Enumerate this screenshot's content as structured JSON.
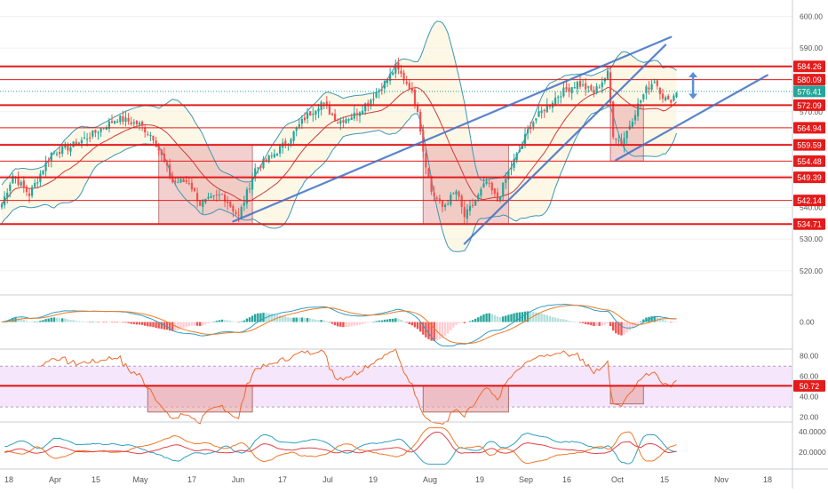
{
  "chart_data": [
    {
      "type": "candlestick",
      "panel": "price",
      "y_ticks": [
        "600.00",
        "590.00",
        "580.00",
        "570.00",
        "560.00",
        "550.00",
        "540.00",
        "530.00",
        "520.00"
      ],
      "ylim": [
        513,
        604
      ],
      "x_tick_labels": [
        "18",
        "Apr",
        "15",
        "May",
        "17",
        "Jun",
        "17",
        "Jul",
        "19",
        "Aug",
        "19",
        "Sep",
        "16",
        "Oct",
        "15",
        "Nov",
        "18"
      ],
      "horizontal_levels": [
        {
          "value": 584.26,
          "label": "584.26"
        },
        {
          "value": 580.09,
          "label": "580.09"
        },
        {
          "value": 572.09,
          "label": "572.09"
        },
        {
          "value": 564.94,
          "label": "564.94"
        },
        {
          "value": 559.59,
          "label": "559.59"
        },
        {
          "value": 554.48,
          "label": "554.48"
        },
        {
          "value": 549.39,
          "label": "549.39"
        },
        {
          "value": 542.14,
          "label": "542.14"
        },
        {
          "value": 534.71,
          "label": "534.71"
        }
      ],
      "last_price": {
        "value": 576.41,
        "label": "576.41"
      },
      "highlight_zones": [
        {
          "start_index": 57,
          "end_index": 91,
          "low": 534.7,
          "high": 559.6
        },
        {
          "start_index": 153,
          "end_index": 184,
          "low": 534.7,
          "high": 559.6
        },
        {
          "start_index": 221,
          "end_index": 233,
          "low": 554.5,
          "high": 572.1
        }
      ],
      "trendlines": [
        {
          "from": {
            "index": 84,
            "value": 535.5
          },
          "to": {
            "index": 243,
            "value": 593.5
          }
        },
        {
          "from": {
            "index": 168,
            "value": 528.5
          },
          "to": {
            "index": 241,
            "value": 591.0
          }
        },
        {
          "from": {
            "index": 223,
            "value": 554.8
          },
          "to": {
            "index": 278,
            "value": 581.5
          }
        }
      ],
      "range_arrow": {
        "index": 251,
        "from_value": 574.0,
        "to_value": 582.5
      },
      "close_anchors": [
        {
          "index": 0,
          "value": 541
        },
        {
          "index": 4,
          "value": 550
        },
        {
          "index": 10,
          "value": 544
        },
        {
          "index": 18,
          "value": 557
        },
        {
          "index": 25,
          "value": 559
        },
        {
          "index": 33,
          "value": 563
        },
        {
          "index": 42,
          "value": 568
        },
        {
          "index": 50,
          "value": 566
        },
        {
          "index": 55,
          "value": 562
        },
        {
          "index": 62,
          "value": 548
        },
        {
          "index": 68,
          "value": 548
        },
        {
          "index": 72,
          "value": 541
        },
        {
          "index": 80,
          "value": 544
        },
        {
          "index": 86,
          "value": 537
        },
        {
          "index": 92,
          "value": 552
        },
        {
          "index": 98,
          "value": 556
        },
        {
          "index": 104,
          "value": 561
        },
        {
          "index": 110,
          "value": 568
        },
        {
          "index": 116,
          "value": 573
        },
        {
          "index": 122,
          "value": 567
        },
        {
          "index": 128,
          "value": 569
        },
        {
          "index": 134,
          "value": 574
        },
        {
          "index": 140,
          "value": 580
        },
        {
          "index": 143,
          "value": 584
        },
        {
          "index": 148,
          "value": 578
        },
        {
          "index": 151,
          "value": 571
        },
        {
          "index": 153,
          "value": 558
        },
        {
          "index": 156,
          "value": 545
        },
        {
          "index": 160,
          "value": 540
        },
        {
          "index": 165,
          "value": 545
        },
        {
          "index": 168,
          "value": 537
        },
        {
          "index": 172,
          "value": 542
        },
        {
          "index": 176,
          "value": 548
        },
        {
          "index": 180,
          "value": 542
        },
        {
          "index": 184,
          "value": 551
        },
        {
          "index": 188,
          "value": 558
        },
        {
          "index": 192,
          "value": 566
        },
        {
          "index": 197,
          "value": 571
        },
        {
          "index": 203,
          "value": 576
        },
        {
          "index": 209,
          "value": 579
        },
        {
          "index": 215,
          "value": 576
        },
        {
          "index": 220,
          "value": 582
        },
        {
          "index": 222,
          "value": 563
        },
        {
          "index": 225,
          "value": 560
        },
        {
          "index": 228,
          "value": 566
        },
        {
          "index": 231,
          "value": 572
        },
        {
          "index": 234,
          "value": 577
        },
        {
          "index": 237,
          "value": 580
        },
        {
          "index": 240,
          "value": 575
        },
        {
          "index": 242,
          "value": 573
        },
        {
          "index": 245,
          "value": 576
        }
      ]
    },
    {
      "type": "histogram+line",
      "panel": "macd",
      "y_ticks": [
        "0.00"
      ],
      "ylim": [
        -9,
        9
      ]
    },
    {
      "type": "line",
      "panel": "rsi",
      "y_ticks": [
        "80.00",
        "60.00",
        "40.00",
        "20.00"
      ],
      "ylim": [
        17,
        85
      ],
      "band": [
        30,
        70
      ],
      "level": {
        "value": 50.72,
        "label": "50.72"
      },
      "highlight_zones": [
        {
          "start_index": 53,
          "end_index": 91,
          "low": 25.0,
          "high": 50.7
        },
        {
          "start_index": 153,
          "end_index": 184,
          "low": 25.0,
          "high": 50.7
        },
        {
          "start_index": 221,
          "end_index": 233,
          "low": 33.0,
          "high": 50.7
        }
      ]
    },
    {
      "type": "line",
      "panel": "dmi",
      "y_ticks": [
        "40.0000",
        "20.0000"
      ],
      "ylim": [
        5,
        48
      ]
    }
  ],
  "colors": {
    "level_red": "#e41b1b",
    "zone_fill": "#e8a9a9",
    "trend_blue": "#3d6fc4",
    "bollinger": "#3b97b5",
    "bollinger_fill": "#fdf7e6",
    "ma_red": "#cf3b3b",
    "candle_up": "#26a69a",
    "candle_down": "#ef5350",
    "macd_line": "#2f9fc0",
    "signal_line": "#ef7a2b",
    "rsi_line": "#ef6a2c",
    "rsi_band": "#f5e6fb",
    "axis_text": "#555555",
    "last_price_bg": "#26a69a"
  }
}
